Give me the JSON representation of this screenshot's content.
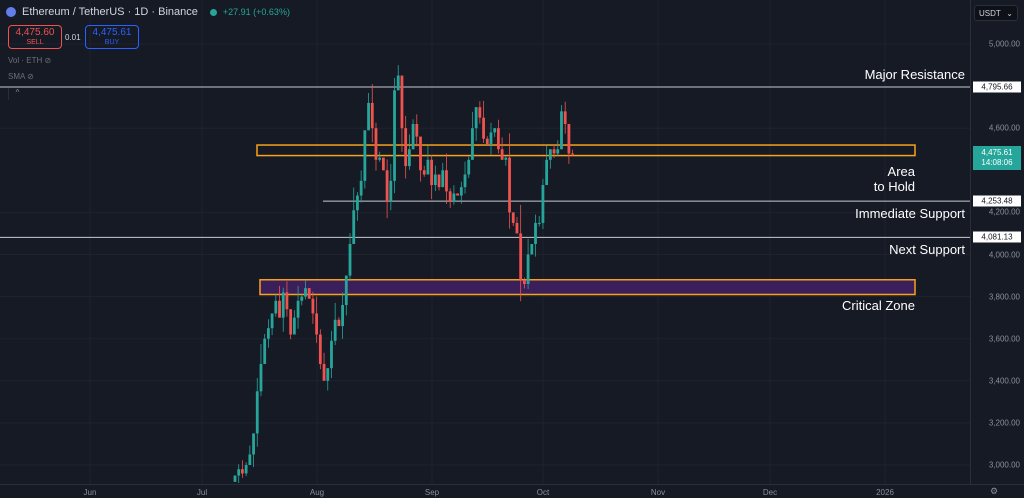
{
  "header": {
    "symbol": "Ethereum / TetherUS · 1D · Binance",
    "change": "+27.91 (+0.63%)",
    "sell_price": "4,475.60",
    "sell_label": "SELL",
    "spread": "0.01",
    "buy_price": "4,475.61",
    "buy_label": "BUY",
    "vol_label": "Vol · ETH",
    "sma_label": "SMA",
    "currency": "USDT"
  },
  "price_axis": {
    "ticks": [
      "5,000.00",
      "4,600.00",
      "4,200.00",
      "4,000.00",
      "3,800.00",
      "3,600.00",
      "3,400.00",
      "3,200.00",
      "3,000.00"
    ],
    "tick_values": [
      5000,
      4600,
      4200,
      4000,
      3800,
      3600,
      3400,
      3200,
      3000
    ],
    "current_price": "4,475.61",
    "countdown": "14:08:06"
  },
  "levels": [
    {
      "label": "4,795.66",
      "value": 4795.66,
      "name": "Major Resistance"
    },
    {
      "label": "4,253.48",
      "value": 4253.48,
      "name": "Immediate Support"
    },
    {
      "label": "4,081.13",
      "value": 4081.13,
      "name": "Next Support"
    }
  ],
  "zones": [
    {
      "name": "Area to Hold",
      "top": 4520,
      "bottom": 4470
    },
    {
      "name": "Critical Zone",
      "top": 3880,
      "bottom": 3810
    }
  ],
  "annotations": {
    "major_resistance": "Major Resistance",
    "area_line1": "Area",
    "area_line2": "to Hold",
    "immediate_support": "Immediate Support",
    "next_support": "Next Support",
    "critical_zone": "Critical Zone"
  },
  "time_axis": [
    "Jun",
    "Jul",
    "Aug",
    "Sep",
    "Oct",
    "Nov",
    "Dec",
    "2026"
  ],
  "colors": {
    "up": "#26a69a",
    "down": "#ef5350",
    "zone_border": "#f7a21b",
    "zone_fill": "#3b1f5a"
  },
  "chart_data": {
    "type": "candlestick",
    "start_date": "Jul 10",
    "closes": [
      2950,
      2980,
      2960,
      3000,
      3050,
      3150,
      3350,
      3480,
      3600,
      3650,
      3720,
      3780,
      3700,
      3820,
      3740,
      3620,
      3700,
      3780,
      3800,
      3840,
      3790,
      3720,
      3620,
      3480,
      3400,
      3460,
      3590,
      3690,
      3660,
      3760,
      3900,
      4050,
      4210,
      4280,
      4350,
      4590,
      4720,
      4600,
      4450,
      4460,
      4400,
      4250,
      4350,
      4780,
      4850,
      4600,
      4420,
      4500,
      4620,
      4560,
      4400,
      4380,
      4450,
      4330,
      4380,
      4320,
      4400,
      4300,
      4250,
      4290,
      4280,
      4320,
      4380,
      4450,
      4600,
      4700,
      4650,
      4550,
      4520,
      4580,
      4600,
      4500,
      4450,
      4460,
      4200,
      4150,
      4100,
      3880,
      3860,
      4000,
      4050,
      4150,
      4150,
      4330,
      4450,
      4500,
      4480,
      4500,
      4680,
      4620,
      4480,
      4475.61
    ],
    "ylim": [
      2900,
      5100
    ]
  }
}
